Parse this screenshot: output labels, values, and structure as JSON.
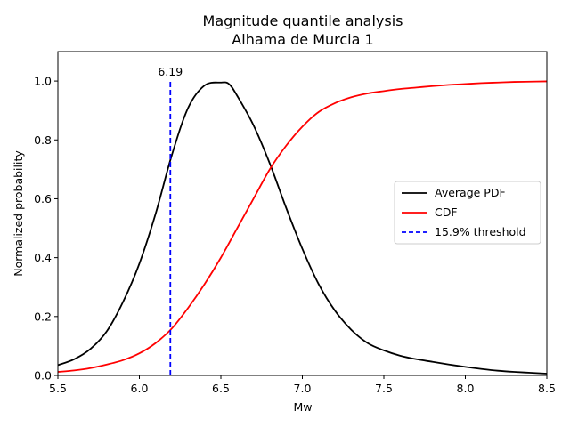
{
  "chart_data": {
    "type": "line",
    "title_lines": [
      "Magnitude quantile analysis",
      "Alhama de Murcia 1"
    ],
    "xlabel": "Mw",
    "ylabel": "Normalized probability",
    "xlim": [
      5.5,
      8.5
    ],
    "ylim": [
      0.0,
      1.1
    ],
    "xticks": [
      5.5,
      6.0,
      6.5,
      7.0,
      7.5,
      8.0,
      8.5
    ],
    "xtick_labels": [
      "5.5",
      "6.0",
      "6.5",
      "7.0",
      "7.5",
      "8.0",
      "8.5"
    ],
    "yticks": [
      0.0,
      0.2,
      0.4,
      0.6,
      0.8,
      1.0
    ],
    "ytick_labels": [
      "0.0",
      "0.2",
      "0.4",
      "0.6",
      "0.8",
      "1.0"
    ],
    "grid": false,
    "legend_position": "center-right",
    "series": [
      {
        "name": "Average PDF",
        "color": "#000000",
        "style": "solid",
        "x": [
          5.5,
          5.6,
          5.7,
          5.8,
          5.9,
          6.0,
          6.1,
          6.2,
          6.3,
          6.4,
          6.5,
          6.55,
          6.6,
          6.7,
          6.8,
          6.9,
          7.0,
          7.1,
          7.2,
          7.3,
          7.4,
          7.5,
          7.6,
          7.7,
          7.8,
          7.9,
          8.0,
          8.1,
          8.2,
          8.3,
          8.4,
          8.5
        ],
        "y": [
          0.035,
          0.055,
          0.09,
          0.15,
          0.25,
          0.38,
          0.55,
          0.75,
          0.91,
          0.985,
          0.995,
          0.99,
          0.95,
          0.85,
          0.72,
          0.57,
          0.43,
          0.31,
          0.22,
          0.155,
          0.11,
          0.085,
          0.067,
          0.055,
          0.046,
          0.037,
          0.029,
          0.022,
          0.016,
          0.012,
          0.009,
          0.006
        ]
      },
      {
        "name": "CDF",
        "color": "#ff0000",
        "style": "solid",
        "x": [
          5.5,
          5.6,
          5.7,
          5.8,
          5.9,
          6.0,
          6.1,
          6.2,
          6.3,
          6.4,
          6.5,
          6.6,
          6.7,
          6.8,
          6.9,
          7.0,
          7.1,
          7.2,
          7.3,
          7.4,
          7.5,
          7.6,
          7.7,
          7.8,
          7.9,
          8.0,
          8.1,
          8.2,
          8.3,
          8.4,
          8.5
        ],
        "y": [
          0.012,
          0.017,
          0.025,
          0.037,
          0.052,
          0.075,
          0.11,
          0.16,
          0.23,
          0.31,
          0.4,
          0.5,
          0.6,
          0.7,
          0.78,
          0.845,
          0.895,
          0.925,
          0.945,
          0.958,
          0.966,
          0.973,
          0.978,
          0.983,
          0.987,
          0.99,
          0.993,
          0.995,
          0.997,
          0.998,
          0.999
        ]
      },
      {
        "name": "15.9% threshold",
        "color": "#0000ff",
        "style": "dashed",
        "x": [
          6.19,
          6.19
        ],
        "y": [
          0.0,
          1.0
        ]
      }
    ],
    "annotations": [
      {
        "text": "6.19",
        "x": 6.19,
        "y": 1.03
      }
    ]
  }
}
